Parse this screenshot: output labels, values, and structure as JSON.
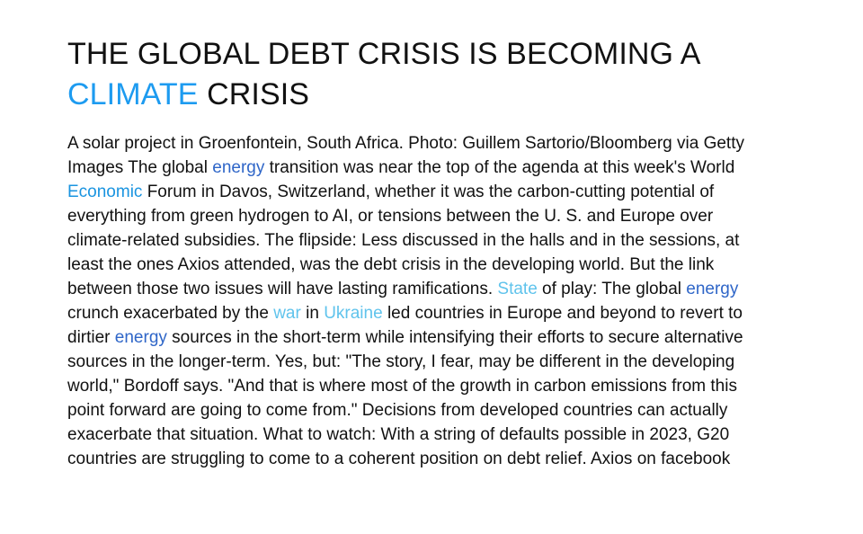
{
  "article": {
    "title": {
      "part1": "THE GLOBAL DEBT CRISIS IS BECOMING A ",
      "highlight": "CLIMATE",
      "part2": " CRISIS"
    },
    "body": [
      {
        "text": "A solar project in Groenfontein, South Africa. Photo: Guillem Sartorio/Bloomberg via Getty Images The global ",
        "style": "plain"
      },
      {
        "text": "energy",
        "style": "link-dark"
      },
      {
        "text": " transition was near the top of the agenda at this week's World ",
        "style": "plain"
      },
      {
        "text": "Economic",
        "style": "link-mid"
      },
      {
        "text": " Forum in Davos, Switzerland, whether it was the carbon-cutting potential of everything from green hydrogen to AI, or tensions between the U. S. and Europe over climate-related subsidies. The flipside: Less discussed in the halls and in the sessions, at least the ones Axios attended, was the debt crisis in the developing world. But the link between those two issues will have lasting ramifications. ",
        "style": "plain"
      },
      {
        "text": "State",
        "style": "link-light"
      },
      {
        "text": " of play: The global ",
        "style": "plain"
      },
      {
        "text": "energy",
        "style": "link-dark"
      },
      {
        "text": " crunch exacerbated by the ",
        "style": "plain"
      },
      {
        "text": "war",
        "style": "link-light"
      },
      {
        "text": " in ",
        "style": "plain"
      },
      {
        "text": "Ukraine",
        "style": "link-light"
      },
      {
        "text": " led countries in Europe and beyond to revert to dirtier ",
        "style": "plain"
      },
      {
        "text": "energy",
        "style": "link-dark"
      },
      {
        "text": " sources in the short-term while intensifying their efforts to secure alternative sources in the longer-term. Yes, but: \"The story, I fear, may be different in the developing world,\" Bordoff says. \"And that is where most of the growth in carbon emissions from this point forward are going to come from.\" Decisions from developed countries can actually exacerbate that situation. What to watch: With a string of defaults possible in 2023, G20 countries are struggling to come to a coherent position on debt relief. Axios on facebook",
        "style": "plain"
      }
    ]
  },
  "colors": {
    "text": "#111111",
    "title_highlight": "#1d9bf0",
    "link_dark": "#2f66c8",
    "link_mid": "#1a94e0",
    "link_light": "#5fc3ec"
  }
}
